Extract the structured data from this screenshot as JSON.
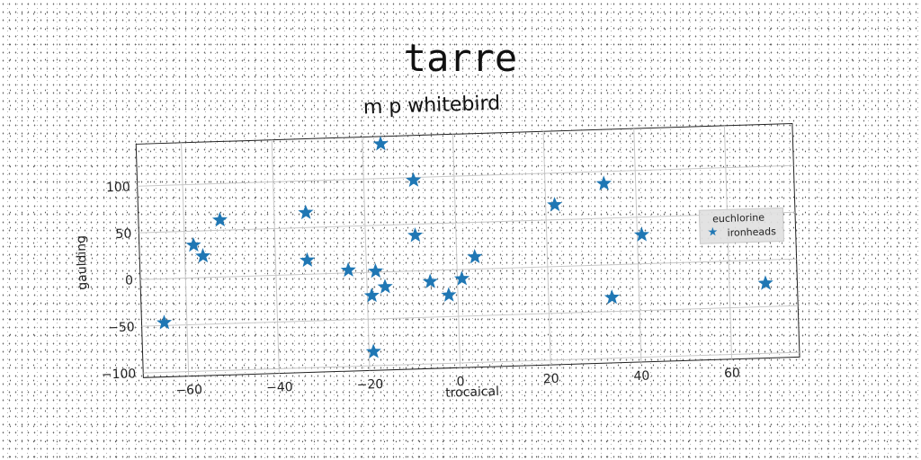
{
  "chart_data": {
    "type": "scatter",
    "title": "tarre",
    "subtitle": "m p whitebird",
    "xlabel": "trocaical",
    "ylabel": "gaulding",
    "xlim": [
      -70,
      75
    ],
    "ylim": [
      -105,
      145
    ],
    "xticks": [
      -60,
      -40,
      -20,
      0,
      20,
      40,
      60
    ],
    "yticks": [
      -100,
      -50,
      0,
      50,
      100
    ],
    "grid": true,
    "legend": {
      "title": "euchlorine",
      "placement": "right"
    },
    "series": [
      {
        "name": "ironheads",
        "marker": "star",
        "color": "#1f77b4",
        "x": [
          -65,
          -58,
          -56,
          -52,
          -33,
          -33,
          -24,
          -19,
          -18,
          -19,
          -16,
          -16,
          -9,
          -9,
          -6,
          -2,
          1,
          4,
          22,
          33,
          34,
          41,
          68
        ],
        "y": [
          -47,
          35,
          23,
          61,
          66,
          15,
          3,
          -85,
          1,
          -25,
          -16,
          137,
          97,
          38,
          -12,
          -27,
          -10,
          13,
          66,
          87,
          -35,
          31,
          -25
        ]
      }
    ]
  }
}
